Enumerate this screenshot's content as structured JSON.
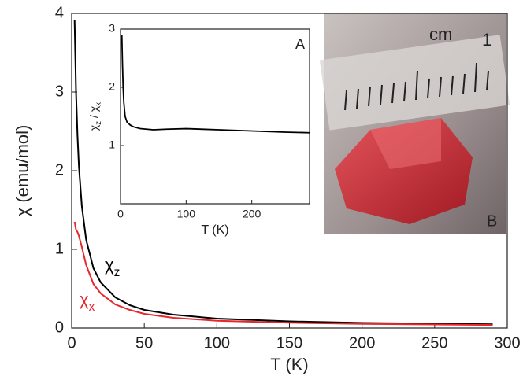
{
  "chart_data": [
    {
      "type": "line",
      "xlabel": "T  (K)",
      "ylabel": "χ (emu/mol)",
      "x": [
        2,
        3,
        4,
        5,
        7,
        10,
        15,
        20,
        30,
        40,
        50,
        70,
        100,
        150,
        200,
        250,
        290
      ],
      "series": [
        {
          "name": {
            "text": "χ",
            "sub": "z"
          },
          "color": "#000000",
          "values": [
            3.92,
            3.0,
            2.45,
            2.05,
            1.55,
            1.12,
            0.76,
            0.58,
            0.39,
            0.29,
            0.23,
            0.17,
            0.12,
            0.085,
            0.065,
            0.055,
            0.048
          ]
        },
        {
          "name": {
            "text": "χ",
            "sub": "x"
          },
          "color": "#e8262b",
          "values": [
            1.35,
            1.25,
            1.22,
            1.17,
            1.03,
            0.8,
            0.56,
            0.44,
            0.3,
            0.23,
            0.18,
            0.13,
            0.093,
            0.067,
            0.052,
            0.045,
            0.039
          ]
        }
      ],
      "xlim": [
        0,
        300
      ],
      "xticks": [
        0,
        50,
        100,
        150,
        200,
        250,
        300
      ],
      "ylim": [
        0,
        4
      ],
      "yticks": [
        0,
        1,
        2,
        3,
        4
      ]
    },
    {
      "type": "line",
      "panel_label": "A",
      "xlabel": "T  (K)",
      "ylabel": [
        {
          "text": "χ"
        },
        {
          "sub": "z"
        },
        {
          "text": " / χ"
        },
        {
          "sub": "x"
        }
      ],
      "x": [
        2,
        3,
        4,
        5,
        7,
        10,
        15,
        20,
        30,
        40,
        50,
        70,
        100,
        150,
        200,
        250,
        288
      ],
      "series": [
        {
          "color": "#000000",
          "values": [
            2.9,
            2.4,
            2.0,
            1.75,
            1.5,
            1.4,
            1.35,
            1.32,
            1.29,
            1.28,
            1.27,
            1.28,
            1.29,
            1.27,
            1.25,
            1.23,
            1.22
          ]
        }
      ],
      "xlim": [
        0,
        288
      ],
      "xticks": [
        0,
        100,
        200
      ],
      "ylim": [
        0,
        3
      ],
      "yticks": [
        1,
        2,
        3
      ]
    }
  ],
  "photo": {
    "ruler_labels": [
      "cm",
      "1"
    ],
    "panel_label": "B"
  }
}
